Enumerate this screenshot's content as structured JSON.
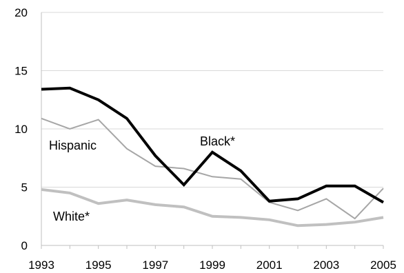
{
  "chart_data": {
    "type": "line",
    "title": "",
    "xlabel": "",
    "ylabel": "",
    "x": [
      1993,
      1994,
      1995,
      1996,
      1997,
      1998,
      1999,
      2000,
      2001,
      2002,
      2003,
      2004,
      2005
    ],
    "x_tick_labels": [
      "1993",
      "1995",
      "1997",
      "1999",
      "2001",
      "2003",
      "2005"
    ],
    "y_tick_labels": [
      "0",
      "5",
      "10",
      "15",
      "20"
    ],
    "xlim": [
      1993,
      2005
    ],
    "ylim": [
      0,
      20
    ],
    "grid": "horizontal",
    "series": [
      {
        "name": "Black*",
        "color": "#000000",
        "values": [
          13.4,
          13.5,
          12.5,
          10.9,
          7.7,
          5.2,
          8.0,
          6.4,
          3.8,
          4.0,
          5.1,
          5.1,
          3.7
        ]
      },
      {
        "name": "Hispanic",
        "color": "#a6a6a6",
        "values": [
          10.9,
          10.0,
          10.8,
          8.3,
          6.8,
          6.6,
          5.9,
          5.7,
          3.7,
          3.0,
          4.0,
          2.3,
          4.9
        ]
      },
      {
        "name": "White*",
        "color": "#c0c0c0",
        "values": [
          4.8,
          4.5,
          3.6,
          3.9,
          3.5,
          3.3,
          2.5,
          2.4,
          2.2,
          1.7,
          1.8,
          2.0,
          2.4
        ]
      }
    ]
  }
}
